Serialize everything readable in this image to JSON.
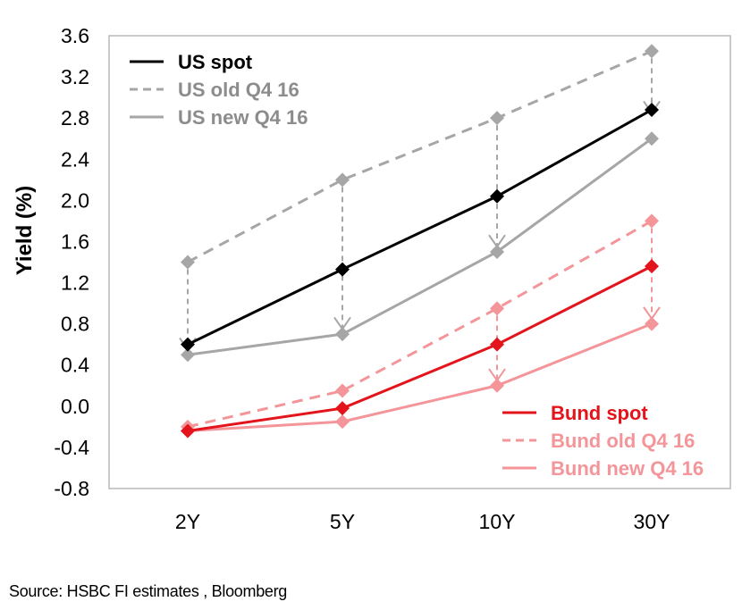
{
  "source_note": "Source: HSBC  FI estimates , Bloomberg",
  "chart_data": {
    "type": "line",
    "ylabel": "Yield (%)",
    "xlabel": "",
    "categories": [
      "2Y",
      "5Y",
      "10Y",
      "30Y"
    ],
    "ylim": [
      -0.8,
      3.6
    ],
    "y_ticks": [
      "3.6",
      "3.2",
      "2.8",
      "2.4",
      "2.0",
      "1.6",
      "1.2",
      "0.8",
      "0.4",
      "0.0",
      "-0.4",
      "-0.8"
    ],
    "y_tick_values": [
      3.6,
      3.2,
      2.8,
      2.4,
      2.0,
      1.6,
      1.2,
      0.8,
      0.4,
      0.0,
      -0.4,
      -0.8
    ],
    "grid": false,
    "series": [
      {
        "name": "US spot",
        "values": [
          0.6,
          1.33,
          2.04,
          2.88
        ],
        "color": "#000000",
        "dash": "solid",
        "legend_group": "top-left"
      },
      {
        "name": "US old Q4 16",
        "values": [
          1.4,
          2.2,
          2.8,
          3.45
        ],
        "color": "#a6a6a6",
        "dash": "dashed",
        "legend_group": "top-left"
      },
      {
        "name": "US new Q4 16",
        "values": [
          0.5,
          0.7,
          1.5,
          2.6
        ],
        "color": "#a6a6a6",
        "dash": "solid",
        "legend_group": "top-left"
      },
      {
        "name": "Bund spot",
        "values": [
          -0.24,
          -0.02,
          0.6,
          1.36
        ],
        "color": "#e3141b",
        "dash": "solid",
        "legend_group": "bottom-right"
      },
      {
        "name": "Bund old Q4 16",
        "values": [
          -0.2,
          0.15,
          0.95,
          1.8
        ],
        "color": "#f4959a",
        "dash": "dashed",
        "legend_group": "bottom-right"
      },
      {
        "name": "Bund new Q4 16",
        "values": [
          -0.24,
          -0.15,
          0.2,
          0.8
        ],
        "color": "#f4959a",
        "dash": "solid",
        "legend_group": "bottom-right"
      }
    ],
    "arrows": [
      {
        "category": "2Y",
        "from": 1.4,
        "to": 0.55,
        "color": "#a6a6a6"
      },
      {
        "category": "5Y",
        "from": 2.2,
        "to": 0.75,
        "color": "#a6a6a6"
      },
      {
        "category": "10Y",
        "from": 2.8,
        "to": 1.55,
        "color": "#a6a6a6"
      },
      {
        "category": "30Y",
        "from": 3.45,
        "to": 2.85,
        "color": "#a6a6a6"
      },
      {
        "category": "10Y",
        "from": 0.95,
        "to": 0.25,
        "color": "#f4959a"
      },
      {
        "category": "30Y",
        "from": 1.8,
        "to": 0.85,
        "color": "#f4959a"
      }
    ]
  }
}
